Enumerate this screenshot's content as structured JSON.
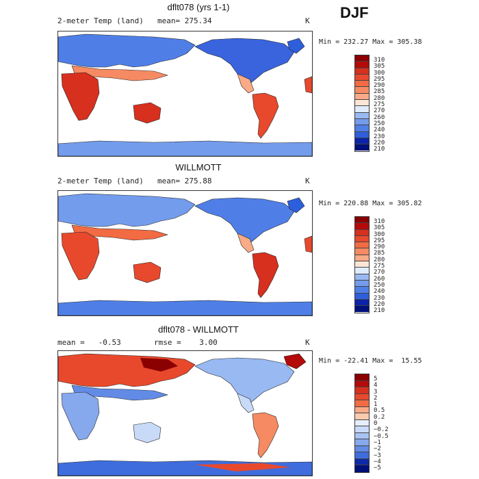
{
  "season": "DJF",
  "colors": {
    "temp_scale": [
      "#8b0000",
      "#b40a0a",
      "#d7301f",
      "#e8492d",
      "#f26b43",
      "#f68a62",
      "#f9aa86",
      "#fbc9ad",
      "#fde6d6",
      "#e0ecfb",
      "#bcd3f7",
      "#98b9f2",
      "#739cec",
      "#4f7fe6",
      "#2d5fdc",
      "#1440c8",
      "#0b23a8",
      "#00107a"
    ],
    "diff_scale": [
      "#8b0000",
      "#b40a0a",
      "#d7301f",
      "#e8492d",
      "#f26b43",
      "#f68a62",
      "#f9aa86",
      "#fbc9ad",
      "#fde6d6",
      "#e6eefb",
      "#c8daf7",
      "#a8c3f2",
      "#86a8ec",
      "#628be6",
      "#3f6ddd",
      "#2149c8",
      "#0e29a8",
      "#00107a"
    ]
  },
  "panels": [
    {
      "title": "dflt078 (yrs 1-1)",
      "left_label": "2-meter Temp (land)",
      "mid_label": "mean= 275.34",
      "unit": "K",
      "minmax": "Min = 232.27 Max = 305.38",
      "colorbar": [
        "310",
        "305",
        "300",
        "295",
        "290",
        "285",
        "280",
        "275",
        "270",
        "260",
        "250",
        "240",
        "230",
        "220",
        "210"
      ]
    },
    {
      "title": "WILLMOTT",
      "left_label": "2-meter Temp (land)",
      "mid_label": "mean= 275.88",
      "unit": "K",
      "minmax": "Min = 220.88 Max = 305.82",
      "colorbar": [
        "310",
        "305",
        "300",
        "295",
        "290",
        "285",
        "280",
        "275",
        "270",
        "260",
        "250",
        "240",
        "230",
        "220",
        "210"
      ]
    },
    {
      "title": "dflt078 - WILLMOTT",
      "left_label": "mean =   -0.53",
      "mid_label": "rmse =    3.00",
      "unit": "K",
      "minmax": "Min = -22.41 Max =  15.55",
      "colorbar": [
        "5",
        "4",
        "3",
        "2",
        "1",
        "0.5",
        "0.2",
        "0",
        "−0.2",
        "−0.5",
        "−1",
        "−2",
        "−3",
        "−4",
        "−5"
      ]
    }
  ]
}
